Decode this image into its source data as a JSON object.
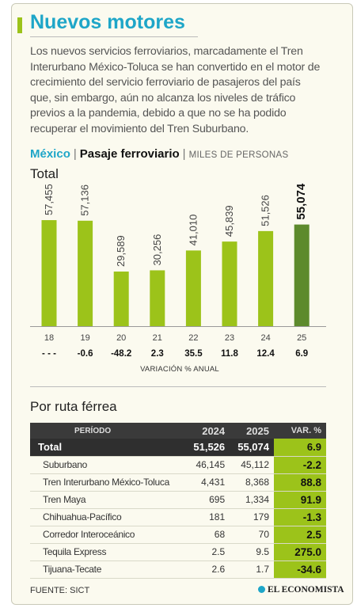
{
  "headline": "Nuevos motores",
  "intro": "Los nuevos servicios ferroviarios, marcadamente el Tren Interurbano México-Toluca se han convertido en el motor de crecimiento del servicio ferroviario de pasajeros del país que, sin embargo, aún no alcanza los niveles de tráfico previos a la pandemia, debido a que no se ha podido recuperar el movimiento del Tren Suburbano.",
  "chart_title": {
    "country": "México",
    "separator": "|",
    "main": "Pasaje ferroviario",
    "unit": "MILES DE PERSONAS"
  },
  "total_label": "Total",
  "chart_data": {
    "type": "bar",
    "categories": [
      "18",
      "19",
      "20",
      "21",
      "22",
      "23",
      "24",
      "25"
    ],
    "values": [
      57455,
      57136,
      29589,
      30256,
      41010,
      45839,
      51526,
      55074
    ],
    "value_labels": [
      "57,455",
      "57,136",
      "29,589",
      "30,256",
      "41,010",
      "45,839",
      "51,526",
      "55,074"
    ],
    "variation": [
      "- - -",
      "-0.6",
      "-48.2",
      "2.3",
      "35.5",
      "11.8",
      "12.4",
      "6.9"
    ],
    "variation_label": "VARIACIÓN % ANUAL",
    "ylim": [
      0,
      60000
    ],
    "colors": {
      "bar": "#9cc31a",
      "highlight": "#5d8a2c"
    }
  },
  "route_title": "Por ruta férrea",
  "table": {
    "headers": {
      "period": "PERÍODO",
      "y2024": "2024",
      "y2025": "2025",
      "var": "VAR. %"
    },
    "total": {
      "name": "Total",
      "y2024": "51,526",
      "y2025": "55,074",
      "var": "6.9"
    },
    "rows": [
      {
        "name": "Suburbano",
        "y2024": "46,145",
        "y2025": "45,112",
        "var": "-2.2"
      },
      {
        "name": "Tren Interurbano México-Toluca",
        "y2024": "4,431",
        "y2025": "8,368",
        "var": "88.8"
      },
      {
        "name": "Tren Maya",
        "y2024": "695",
        "y2025": "1,334",
        "var": "91.9"
      },
      {
        "name": "Chihuahua-Pacífico",
        "y2024": "181",
        "y2025": "179",
        "var": "-1.3"
      },
      {
        "name": "Corredor Interoceánico",
        "y2024": "68",
        "y2025": "70",
        "var": "2.5"
      },
      {
        "name": "Tequila Express",
        "y2024": "2.5",
        "y2025": "9.5",
        "var": "275.0"
      },
      {
        "name": "Tijuana-Tecate",
        "y2024": "2.6",
        "y2025": "1.7",
        "var": "-34.6"
      }
    ]
  },
  "source": "FUENTE: SICT",
  "brand": "EL ECONOMISTA"
}
